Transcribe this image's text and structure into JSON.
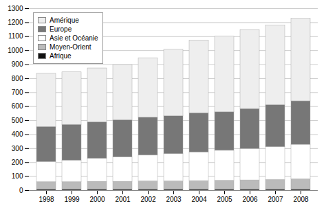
{
  "chart_data": {
    "type": "bar",
    "stacked": true,
    "categories": [
      "1998",
      "1999",
      "2000",
      "2001",
      "2002",
      "2003",
      "2004",
      "2005",
      "2006",
      "2007",
      "2008"
    ],
    "series": [
      {
        "name": "Afrique",
        "color": "#111111",
        "values": [
          8,
          8,
          8,
          8,
          8,
          8,
          8,
          8,
          8,
          8,
          8
        ]
      },
      {
        "name": "Moyen-Orient",
        "color": "#bbbbbb",
        "values": [
          52,
          52,
          55,
          55,
          58,
          58,
          60,
          62,
          65,
          68,
          72
        ]
      },
      {
        "name": "Asie et Océanie",
        "color": "#ffffff",
        "values": [
          145,
          155,
          165,
          175,
          185,
          195,
          205,
          215,
          225,
          235,
          248
        ]
      },
      {
        "name": "Europe",
        "color": "#777777",
        "values": [
          250,
          255,
          260,
          265,
          270,
          270,
          280,
          275,
          285,
          300,
          310
        ]
      },
      {
        "name": "Amérique",
        "color": "#eeeeee",
        "values": [
          380,
          375,
          385,
          395,
          425,
          475,
          520,
          540,
          565,
          570,
          590
        ]
      }
    ],
    "ylim": [
      0,
      1300
    ],
    "yticks": [
      0,
      100,
      200,
      300,
      400,
      500,
      600,
      700,
      800,
      900,
      1000,
      1100,
      1200,
      1300
    ],
    "grid": true,
    "legend": "upper left"
  }
}
